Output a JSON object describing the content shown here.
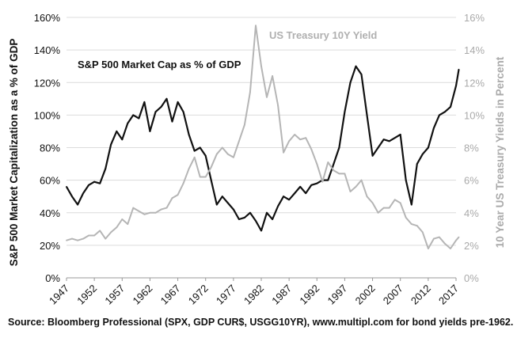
{
  "chart_data": {
    "type": "line",
    "ylabel_left": "S&P 500 Market Capitalization as a % of GDP",
    "ylabel_right": "10 Year US Treasury Yields in Percent",
    "x_ticks": [
      "1947",
      "1952",
      "1957",
      "1962",
      "1967",
      "1972",
      "1977",
      "1982",
      "1987",
      "1992",
      "1997",
      "2002",
      "2007",
      "2012",
      "2017"
    ],
    "xlim": [
      1947,
      2017
    ],
    "left_axis": {
      "ticks": [
        "0%",
        "20%",
        "40%",
        "60%",
        "80%",
        "100%",
        "120%",
        "140%",
        "160%"
      ],
      "ylim": [
        0,
        160
      ]
    },
    "right_axis": {
      "ticks": [
        "0%",
        "2%",
        "4%",
        "6%",
        "8%",
        "10%",
        "12%",
        "14%",
        "16%"
      ],
      "ylim": [
        0,
        16
      ]
    },
    "grid": true,
    "series": [
      {
        "name": "S&P 500 Market Cap as % of GDP",
        "axis": "left",
        "color": "#111111",
        "points": [
          [
            1947,
            56
          ],
          [
            1948,
            50
          ],
          [
            1949,
            45
          ],
          [
            1950,
            52
          ],
          [
            1951,
            57
          ],
          [
            1952,
            59
          ],
          [
            1953,
            58
          ],
          [
            1954,
            67
          ],
          [
            1955,
            82
          ],
          [
            1956,
            90
          ],
          [
            1957,
            85
          ],
          [
            1958,
            95
          ],
          [
            1959,
            100
          ],
          [
            1960,
            98
          ],
          [
            1961,
            108
          ],
          [
            1962,
            90
          ],
          [
            1963,
            102
          ],
          [
            1964,
            105
          ],
          [
            1965,
            110
          ],
          [
            1966,
            96
          ],
          [
            1967,
            108
          ],
          [
            1968,
            102
          ],
          [
            1969,
            88
          ],
          [
            1970,
            78
          ],
          [
            1971,
            80
          ],
          [
            1972,
            75
          ],
          [
            1973,
            60
          ],
          [
            1974,
            45
          ],
          [
            1975,
            50
          ],
          [
            1976,
            46
          ],
          [
            1977,
            42
          ],
          [
            1978,
            36
          ],
          [
            1979,
            37
          ],
          [
            1980,
            40
          ],
          [
            1981,
            35
          ],
          [
            1982,
            29
          ],
          [
            1983,
            40
          ],
          [
            1984,
            36
          ],
          [
            1985,
            44
          ],
          [
            1986,
            50
          ],
          [
            1987,
            48
          ],
          [
            1988,
            52
          ],
          [
            1989,
            56
          ],
          [
            1990,
            52
          ],
          [
            1991,
            57
          ],
          [
            1992,
            58
          ],
          [
            1993,
            60
          ],
          [
            1994,
            60
          ],
          [
            1995,
            70
          ],
          [
            1996,
            80
          ],
          [
            1997,
            102
          ],
          [
            1998,
            120
          ],
          [
            1999,
            130
          ],
          [
            2000,
            125
          ],
          [
            2001,
            100
          ],
          [
            2002,
            75
          ],
          [
            2003,
            80
          ],
          [
            2004,
            85
          ],
          [
            2005,
            84
          ],
          [
            2006,
            86
          ],
          [
            2007,
            88
          ],
          [
            2008,
            60
          ],
          [
            2009,
            45
          ],
          [
            2010,
            70
          ],
          [
            2011,
            76
          ],
          [
            2012,
            80
          ],
          [
            2013,
            92
          ],
          [
            2014,
            100
          ],
          [
            2015,
            102
          ],
          [
            2016,
            105
          ],
          [
            2017,
            118
          ],
          [
            2017.5,
            128
          ]
        ],
        "label": "S&P 500 Market Cap as % of GDP"
      },
      {
        "name": "US Treasury 10Y Yield",
        "axis": "right",
        "color": "#b5b5b5",
        "points": [
          [
            1947,
            2.3
          ],
          [
            1948,
            2.4
          ],
          [
            1949,
            2.3
          ],
          [
            1950,
            2.4
          ],
          [
            1951,
            2.6
          ],
          [
            1952,
            2.6
          ],
          [
            1953,
            2.9
          ],
          [
            1954,
            2.4
          ],
          [
            1955,
            2.8
          ],
          [
            1956,
            3.1
          ],
          [
            1957,
            3.6
          ],
          [
            1958,
            3.3
          ],
          [
            1959,
            4.3
          ],
          [
            1960,
            4.1
          ],
          [
            1961,
            3.9
          ],
          [
            1962,
            4.0
          ],
          [
            1963,
            4.0
          ],
          [
            1964,
            4.2
          ],
          [
            1965,
            4.3
          ],
          [
            1966,
            4.9
          ],
          [
            1967,
            5.1
          ],
          [
            1968,
            5.8
          ],
          [
            1969,
            6.7
          ],
          [
            1970,
            7.4
          ],
          [
            1971,
            6.2
          ],
          [
            1972,
            6.2
          ],
          [
            1973,
            6.8
          ],
          [
            1974,
            7.6
          ],
          [
            1975,
            8.0
          ],
          [
            1976,
            7.6
          ],
          [
            1977,
            7.4
          ],
          [
            1978,
            8.4
          ],
          [
            1979,
            9.4
          ],
          [
            1980,
            11.4
          ],
          [
            1981,
            15.5
          ],
          [
            1982,
            13.0
          ],
          [
            1983,
            11.1
          ],
          [
            1984,
            12.4
          ],
          [
            1985,
            10.6
          ],
          [
            1986,
            7.7
          ],
          [
            1987,
            8.4
          ],
          [
            1988,
            8.8
          ],
          [
            1989,
            8.5
          ],
          [
            1990,
            8.6
          ],
          [
            1991,
            7.9
          ],
          [
            1992,
            7.0
          ],
          [
            1993,
            5.9
          ],
          [
            1994,
            7.1
          ],
          [
            1995,
            6.6
          ],
          [
            1996,
            6.4
          ],
          [
            1997,
            6.4
          ],
          [
            1998,
            5.3
          ],
          [
            1999,
            5.6
          ],
          [
            2000,
            6.0
          ],
          [
            2001,
            5.0
          ],
          [
            2002,
            4.6
          ],
          [
            2003,
            4.0
          ],
          [
            2004,
            4.3
          ],
          [
            2005,
            4.3
          ],
          [
            2006,
            4.8
          ],
          [
            2007,
            4.6
          ],
          [
            2008,
            3.7
          ],
          [
            2009,
            3.3
          ],
          [
            2010,
            3.2
          ],
          [
            2011,
            2.8
          ],
          [
            2012,
            1.8
          ],
          [
            2013,
            2.4
          ],
          [
            2014,
            2.5
          ],
          [
            2015,
            2.1
          ],
          [
            2016,
            1.8
          ],
          [
            2017,
            2.3
          ],
          [
            2017.5,
            2.5
          ]
        ],
        "label": "US Treasury 10Y Yield"
      }
    ]
  },
  "source": "Source: Bloomberg Professional (SPX, GDP CUR$, USGG10YR), www.multipl.com for bond yields pre-1962."
}
